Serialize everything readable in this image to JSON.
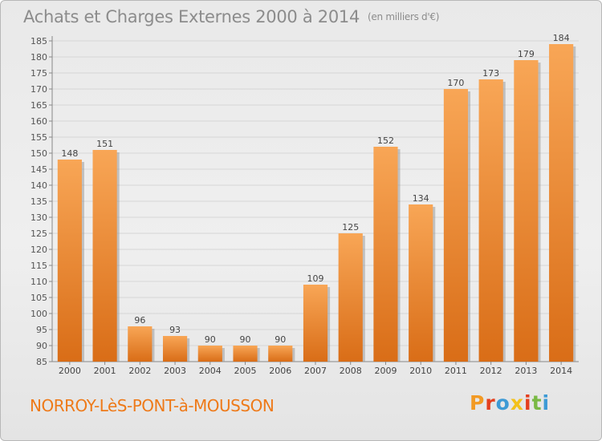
{
  "header": {
    "title": "Achats et Charges Externes 2000 à 2014",
    "unit": "(en milliers d'€)"
  },
  "footer": {
    "commune": "NORROY-LèS-PONT-à-MOUSSON",
    "logo": "Proxiti",
    "logo_colors": [
      "#f29a24",
      "#e43f1e",
      "#3d9ad5",
      "#f3c11b",
      "#e43f1e",
      "#79b944",
      "#3d9ad5"
    ]
  },
  "colors": {
    "bar_light": "#f8a656",
    "bar_dark": "#d96d17",
    "shadow": "#9a9a9a",
    "commune_text": "#ee7a19",
    "title_text": "#8c8c8c"
  },
  "chart_data": {
    "type": "bar",
    "title": "Achats et Charges Externes 2000 à 2014",
    "subtitle": "(en milliers d'€)",
    "categories": [
      "2000",
      "2001",
      "2002",
      "2003",
      "2004",
      "2005",
      "2006",
      "2007",
      "2008",
      "2009",
      "2010",
      "2011",
      "2012",
      "2013",
      "2014"
    ],
    "values": [
      148,
      151,
      96,
      93,
      90,
      90,
      90,
      109,
      125,
      152,
      134,
      170,
      173,
      179,
      184
    ],
    "ylim": [
      85,
      185
    ],
    "yticks": [
      85,
      90,
      95,
      100,
      105,
      110,
      115,
      120,
      125,
      130,
      135,
      140,
      145,
      150,
      155,
      160,
      165,
      170,
      175,
      180,
      185
    ],
    "grid": true,
    "xlabel": "",
    "ylabel": ""
  }
}
